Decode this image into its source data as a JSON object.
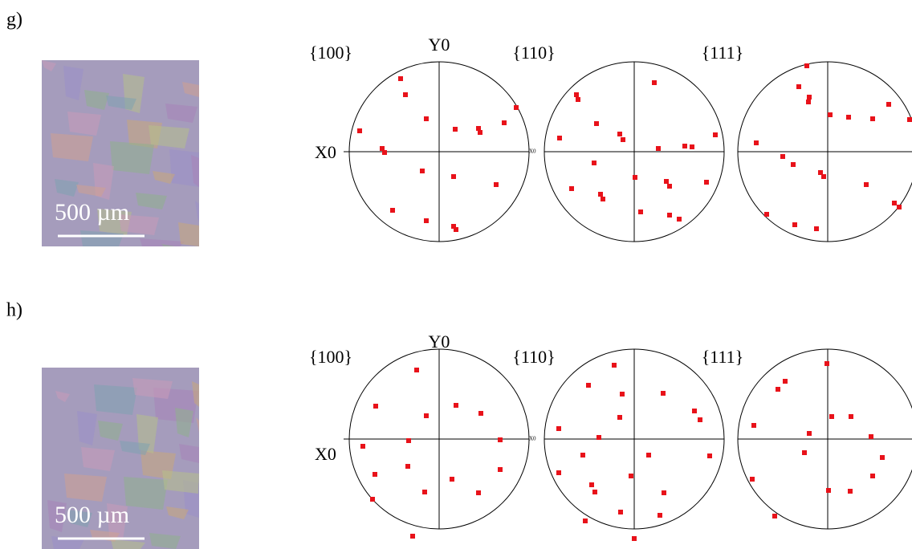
{
  "panels": [
    {
      "label": "g)",
      "scale_bar": "500 µm",
      "axis_y": "Y0",
      "axis_x": "X0",
      "small_axis_x": "X0",
      "poles": [
        "{100}",
        "{110}",
        "{111}"
      ]
    },
    {
      "label": "h)",
      "scale_bar": "500 µm",
      "axis_y": "Y0",
      "axis_x": "X0",
      "small_axis_x": "X0",
      "poles": [
        "{100}",
        "{110}",
        "{111}"
      ]
    }
  ]
}
